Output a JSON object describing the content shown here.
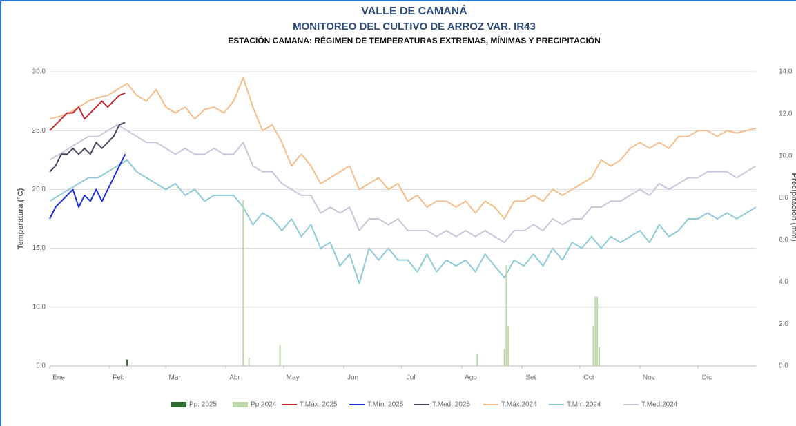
{
  "chart_data": {
    "type": "line",
    "title": "VALLE DE CAMANÁ",
    "subtitle": "MONITOREO DEL CULTIVO DE ARROZ VAR. IR43",
    "subtitle2": "ESTACIÓN CAMANA: RÉGIMEN DE TEMPERATURAS EXTREMAS, MÍNIMAS Y PRECIPITACIÓN",
    "ylabel": "Temperatura (°C)",
    "y2label": "Precipitación (mm)",
    "xlim": [
      1,
      366
    ],
    "xticks": [
      {
        "value": 1,
        "label": "Ene"
      },
      {
        "value": 32,
        "label": "Feb"
      },
      {
        "value": 61,
        "label": "Mar"
      },
      {
        "value": 92,
        "label": "Abr"
      },
      {
        "value": 122,
        "label": "May"
      },
      {
        "value": 153,
        "label": "Jun"
      },
      {
        "value": 183,
        "label": "Jul"
      },
      {
        "value": 214,
        "label": "Ago"
      },
      {
        "value": 245,
        "label": "Set"
      },
      {
        "value": 275,
        "label": "Oct"
      },
      {
        "value": 306,
        "label": "Nov"
      },
      {
        "value": 336,
        "label": "Dic"
      }
    ],
    "ylim": [
      5,
      30
    ],
    "yticks": [
      {
        "value": 5,
        "label": "5.0"
      },
      {
        "value": 10,
        "label": "10.0"
      },
      {
        "value": 15,
        "label": "15.0"
      },
      {
        "value": 20,
        "label": "20.0"
      },
      {
        "value": 25,
        "label": "25.0"
      },
      {
        "value": 30,
        "label": "30.0"
      }
    ],
    "y2lim": [
      0,
      14
    ],
    "y2ticks": [
      {
        "value": 0,
        "label": "0.0"
      },
      {
        "value": 2,
        "label": "2.0"
      },
      {
        "value": 4,
        "label": "4.0"
      },
      {
        "value": 6,
        "label": "6.0"
      },
      {
        "value": 8,
        "label": "8.0"
      },
      {
        "value": 10,
        "label": "10.0"
      },
      {
        "value": 12,
        "label": "12.0"
      },
      {
        "value": 14,
        "label": "14.0"
      }
    ],
    "grid": true,
    "series": [
      {
        "name": "Pp. 2025",
        "type": "bar",
        "axis": "y2",
        "color": "#2e6b2e",
        "x": [
          41
        ],
        "values": [
          0.3
        ]
      },
      {
        "name": "Pp.2024",
        "type": "bar",
        "axis": "y2",
        "color": "#b9d8a6",
        "x": [
          101,
          104,
          120,
          222,
          236,
          237,
          238,
          282,
          283,
          284,
          285
        ],
        "values": [
          7.9,
          0.4,
          1.0,
          0.6,
          0.8,
          4.8,
          1.9,
          1.9,
          3.3,
          3.3,
          0.9
        ]
      },
      {
        "name": "T.Máx. 2025",
        "type": "line",
        "color": "#c0272d",
        "x": [
          1,
          4,
          7,
          10,
          13,
          16,
          19,
          22,
          25,
          28,
          31,
          34,
          37,
          40
        ],
        "values": [
          25,
          25.5,
          26,
          26.5,
          26.5,
          27,
          26,
          26.5,
          27,
          27.5,
          27,
          27.5,
          28,
          28.2
        ]
      },
      {
        "name": "T.Mín. 2025",
        "type": "line",
        "color": "#1f2fd6",
        "x": [
          1,
          4,
          7,
          10,
          13,
          16,
          19,
          22,
          25,
          28,
          31,
          34,
          37,
          40
        ],
        "values": [
          17.5,
          18.5,
          19,
          19.5,
          20,
          18.5,
          19.5,
          19,
          20,
          19,
          20,
          21,
          22,
          23
        ]
      },
      {
        "name": "T.Med. 2025",
        "type": "line",
        "color": "#4a4560",
        "x": [
          1,
          4,
          7,
          10,
          13,
          16,
          19,
          22,
          25,
          28,
          31,
          34,
          37,
          40
        ],
        "values": [
          21.5,
          22,
          23,
          23,
          23.5,
          23,
          23.5,
          23,
          24,
          23.5,
          24,
          24.5,
          25.5,
          25.7
        ]
      },
      {
        "name": "T.Máx.2024",
        "type": "line",
        "color": "#f5bd8a",
        "x": [
          1,
          6,
          11,
          16,
          21,
          26,
          31,
          36,
          41,
          46,
          51,
          56,
          61,
          66,
          71,
          76,
          81,
          86,
          91,
          96,
          101,
          106,
          111,
          116,
          121,
          126,
          131,
          136,
          141,
          146,
          151,
          156,
          161,
          166,
          171,
          176,
          181,
          186,
          191,
          196,
          201,
          206,
          211,
          216,
          221,
          226,
          231,
          236,
          241,
          246,
          251,
          256,
          261,
          266,
          271,
          276,
          281,
          286,
          291,
          296,
          301,
          306,
          311,
          316,
          321,
          326,
          331,
          336,
          341,
          346,
          351,
          356,
          361,
          366
        ],
        "values": [
          26,
          26.2,
          26.5,
          27,
          27.5,
          27.8,
          28,
          28.5,
          29,
          28,
          27.5,
          28.5,
          27,
          26.5,
          27,
          26,
          26.8,
          27,
          26.5,
          27.5,
          29.5,
          27,
          25,
          25.5,
          24,
          22,
          23,
          22,
          20.5,
          21,
          21.5,
          22,
          20,
          20.5,
          21,
          20,
          20.5,
          19,
          19.5,
          18.5,
          19,
          19,
          18.5,
          19,
          18,
          19,
          18.5,
          17.5,
          19,
          19,
          19.5,
          19,
          20,
          19.5,
          20,
          20.5,
          21,
          22.5,
          22,
          22.5,
          23.5,
          24,
          23.5,
          24,
          23.5,
          24.5,
          24.5,
          25,
          25,
          24.5,
          25,
          24.8,
          25,
          25.2
        ]
      },
      {
        "name": "T.Mín.2024",
        "type": "line",
        "color": "#8ecbd6",
        "x": [
          1,
          6,
          11,
          16,
          21,
          26,
          31,
          36,
          41,
          46,
          51,
          56,
          61,
          66,
          71,
          76,
          81,
          86,
          91,
          96,
          101,
          106,
          111,
          116,
          121,
          126,
          131,
          136,
          141,
          146,
          151,
          156,
          161,
          166,
          171,
          176,
          181,
          186,
          191,
          196,
          201,
          206,
          211,
          216,
          221,
          226,
          231,
          236,
          241,
          246,
          251,
          256,
          261,
          266,
          271,
          276,
          281,
          286,
          291,
          296,
          301,
          306,
          311,
          316,
          321,
          326,
          331,
          336,
          341,
          346,
          351,
          356,
          361,
          366
        ],
        "values": [
          19,
          19.5,
          20,
          20.5,
          21,
          21,
          21.5,
          22,
          22.5,
          21.5,
          21,
          20.5,
          20,
          20.5,
          19.5,
          20,
          19,
          19.5,
          19.5,
          19.5,
          18.5,
          17,
          18,
          17.5,
          16.5,
          17.5,
          16,
          17,
          15,
          15.5,
          13.5,
          14.5,
          12,
          15,
          14,
          15,
          14,
          14,
          13,
          14.5,
          13,
          14,
          13.5,
          14,
          13,
          14.5,
          13.5,
          12.5,
          14,
          13.5,
          14.5,
          13.5,
          15,
          14,
          15.5,
          15,
          16,
          15,
          16,
          15.5,
          16,
          16.5,
          15.5,
          17,
          16,
          16.5,
          17.5,
          17.5,
          18,
          17.5,
          18,
          17.5,
          18,
          18.5
        ]
      },
      {
        "name": "T.Med.2024",
        "type": "line",
        "color": "#cfc3da",
        "x": [
          1,
          6,
          11,
          16,
          21,
          26,
          31,
          36,
          41,
          46,
          51,
          56,
          61,
          66,
          71,
          76,
          81,
          86,
          91,
          96,
          101,
          106,
          111,
          116,
          121,
          126,
          131,
          136,
          141,
          146,
          151,
          156,
          161,
          166,
          171,
          176,
          181,
          186,
          191,
          196,
          201,
          206,
          211,
          216,
          221,
          226,
          231,
          236,
          241,
          246,
          251,
          256,
          261,
          266,
          271,
          276,
          281,
          286,
          291,
          296,
          301,
          306,
          311,
          316,
          321,
          326,
          331,
          336,
          341,
          346,
          351,
          356,
          361,
          366
        ],
        "values": [
          22.5,
          23,
          23.5,
          24,
          24.5,
          24.5,
          25,
          25.5,
          25,
          24.5,
          24,
          24,
          23.5,
          23,
          23.5,
          23,
          23,
          23.5,
          23,
          23,
          24,
          22,
          21.5,
          21.5,
          20.5,
          20,
          19.5,
          19.5,
          18,
          18.5,
          18,
          18.5,
          16.5,
          17.5,
          17.5,
          17,
          17.5,
          16.5,
          16.5,
          16.5,
          16,
          16.5,
          16,
          16.5,
          16,
          16.5,
          16,
          15.5,
          16.5,
          16.5,
          17,
          16.5,
          17.5,
          17,
          17.5,
          17.5,
          18.5,
          18.5,
          19,
          19,
          19.5,
          20,
          19.5,
          20.5,
          20,
          20.5,
          21,
          21,
          21.5,
          21.5,
          21.5,
          21,
          21.5,
          22
        ]
      }
    ]
  }
}
